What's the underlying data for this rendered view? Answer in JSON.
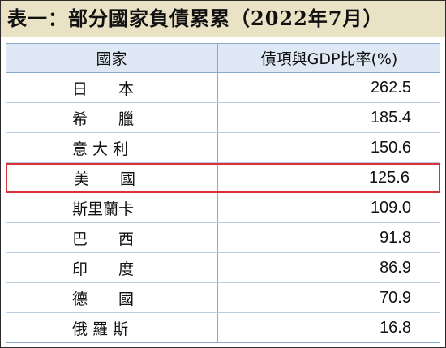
{
  "title": "表一：部分國家負債累累（2022年7月）",
  "table": {
    "headers": {
      "country": "國家",
      "ratio": "債項與GDP比率(%)"
    },
    "rows": [
      {
        "country": "日　　本",
        "ratio": "262.5"
      },
      {
        "country": "希　　臘",
        "ratio": "185.4"
      },
      {
        "country": "意 大 利",
        "ratio": "150.6"
      },
      {
        "country": "美　　國",
        "ratio": "125.6"
      },
      {
        "country": "斯里蘭卡",
        "ratio": "109.0"
      },
      {
        "country": "巴　　西",
        "ratio": "91.8"
      },
      {
        "country": "印　　度",
        "ratio": "86.9"
      },
      {
        "country": "德　　國",
        "ratio": "70.9"
      },
      {
        "country": "俄 羅 斯",
        "ratio": "16.8"
      }
    ],
    "highlighted_row_index": 3,
    "highlight_color": "#d9323a"
  },
  "colors": {
    "title_background": "#e9e2c4",
    "header_background": "#dfe9f5",
    "grid_lines": "#8aa8c8"
  }
}
